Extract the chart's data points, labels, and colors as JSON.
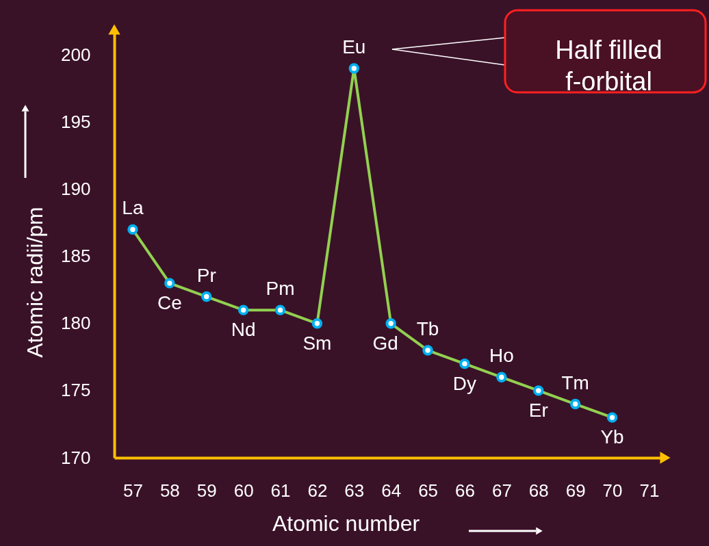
{
  "chart_data": {
    "type": "line",
    "xlabel": "Atomic number",
    "ylabel": "Atomic radii/pm",
    "x": [
      57,
      58,
      59,
      60,
      61,
      62,
      63,
      64,
      65,
      66,
      67,
      68,
      69,
      70
    ],
    "series": [
      {
        "color": "#92d050",
        "values": [
          187,
          183,
          182,
          181,
          181,
          180,
          199,
          180,
          178,
          177,
          176,
          175,
          174,
          173
        ]
      }
    ],
    "marker": "circle",
    "line_style": "solid",
    "xlim": [
      56.5,
      71.4
    ],
    "xticks": [
      57,
      58,
      59,
      60,
      61,
      62,
      63,
      64,
      65,
      66,
      67,
      68,
      69,
      70,
      71
    ],
    "ylim": [
      170,
      201.8
    ],
    "yticks": [
      170,
      175,
      180,
      185,
      190,
      195,
      200
    ],
    "annotations": [
      {
        "text": "La",
        "x": 57,
        "y": 187
      },
      {
        "text": "Ce",
        "x": 58,
        "y": 183
      },
      {
        "text": "Pr",
        "x": 59,
        "y": 182
      },
      {
        "text": "Nd",
        "x": 60,
        "y": 181
      },
      {
        "text": "Pm",
        "x": 61,
        "y": 181
      },
      {
        "text": "Sm",
        "x": 62,
        "y": 180
      },
      {
        "text": "Eu",
        "x": 63,
        "y": 199
      },
      {
        "text": "Gd",
        "x": 64,
        "y": 180
      },
      {
        "text": "Tb",
        "x": 65,
        "y": 178
      },
      {
        "text": "Dy",
        "x": 66,
        "y": 177
      },
      {
        "text": "Ho",
        "x": 67,
        "y": 176
      },
      {
        "text": "Er",
        "x": 68,
        "y": 175
      },
      {
        "text": "Tm",
        "x": 69,
        "y": 174
      },
      {
        "text": "Yb",
        "x": 70,
        "y": 173
      },
      "Half filled\nf-orbital"
    ]
  }
}
